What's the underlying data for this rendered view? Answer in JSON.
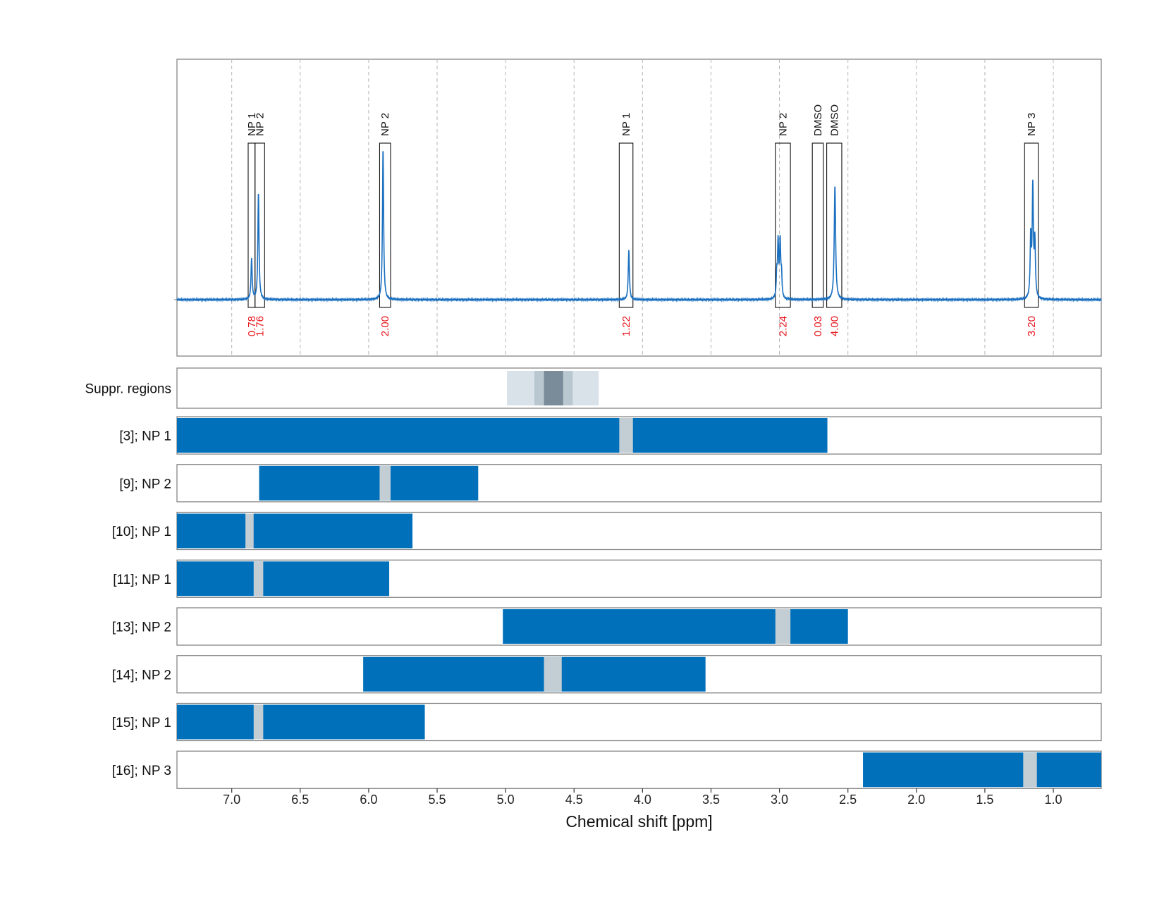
{
  "colors": {
    "spectrum": "#1a6fc0",
    "bar": "#0070bb",
    "gap": "#c2cdd4",
    "suppr_light": "#d9e2e9",
    "suppr_mid": "#b9c7d0",
    "suppr_dark": "#7a8c99",
    "integral": "#e8141c",
    "grid": "#b5b5b5",
    "frame": "#7b7b7b"
  },
  "chart_data": {
    "type": "line",
    "xlabel": "Chemical shift [ppm]",
    "xlim": [
      7.4,
      0.65
    ],
    "x_reversed": true,
    "x_ticks": [
      7.0,
      6.5,
      6.0,
      5.5,
      5.0,
      4.5,
      4.0,
      3.5,
      3.0,
      2.5,
      2.0,
      1.5,
      1.0
    ],
    "x_tick_labels": [
      "7.0",
      "6.5",
      "6.0",
      "5.5",
      "5.0",
      "4.5",
      "4.0",
      "3.5",
      "3.0",
      "2.5",
      "2.0",
      "1.5",
      "1.0"
    ],
    "grid": "vertical dashed",
    "spectrum_peaks": [
      {
        "ppm": 6.855,
        "height": 0.27,
        "width": 0.005
      },
      {
        "ppm": 6.805,
        "height": 0.71,
        "width": 0.005
      },
      {
        "ppm": 5.895,
        "height": 1.0,
        "width": 0.005
      },
      {
        "ppm": 4.1,
        "height": 0.33,
        "width": 0.005
      },
      {
        "ppm": 3.01,
        "height": 0.37,
        "width": 0.005
      },
      {
        "ppm": 2.995,
        "height": 0.37,
        "width": 0.005
      },
      {
        "ppm": 3.02,
        "height": 0.14,
        "width": 0.004
      },
      {
        "ppm": 2.985,
        "height": 0.14,
        "width": 0.004
      },
      {
        "ppm": 2.595,
        "height": 0.76,
        "width": 0.006
      },
      {
        "ppm": 1.165,
        "height": 0.4,
        "width": 0.005
      },
      {
        "ppm": 1.15,
        "height": 0.72,
        "width": 0.005
      },
      {
        "ppm": 1.135,
        "height": 0.37,
        "width": 0.005
      }
    ],
    "peak_regions": [
      {
        "label": "NP 1",
        "from": 6.88,
        "to": 6.83,
        "integral": "0.78"
      },
      {
        "label": "NP 2",
        "from": 6.83,
        "to": 6.76,
        "integral": "1.76"
      },
      {
        "label": "NP 2",
        "from": 5.92,
        "to": 5.84,
        "integral": "2.00"
      },
      {
        "label": "NP 1",
        "from": 4.17,
        "to": 4.07,
        "integral": "1.22"
      },
      {
        "label": "NP 2",
        "from": 3.03,
        "to": 2.92,
        "integral": "2.24"
      },
      {
        "label": "DMSO",
        "from": 2.76,
        "to": 2.68,
        "integral": "0.03"
      },
      {
        "label": "DMSO",
        "from": 2.655,
        "to": 2.545,
        "integral": "4.00"
      },
      {
        "label": "NP 3",
        "from": 1.21,
        "to": 1.11,
        "integral": "3.20"
      }
    ],
    "suppression_regions": {
      "label": "Suppr. regions",
      "bands": [
        {
          "from": 4.99,
          "to": 4.32,
          "shade": "light"
        },
        {
          "from": 4.79,
          "to": 4.51,
          "shade": "mid"
        },
        {
          "from": 4.72,
          "to": 4.58,
          "shade": "dark"
        }
      ]
    },
    "tracks": [
      {
        "label": "[3]; NP 1",
        "bar_from": 7.4,
        "bar_to": 2.65,
        "gap_from": 4.17,
        "gap_to": 4.07
      },
      {
        "label": "[9]; NP 2",
        "bar_from": 6.8,
        "bar_to": 5.2,
        "gap_from": 5.92,
        "gap_to": 5.84
      },
      {
        "label": "[10]; NP 1",
        "bar_from": 7.4,
        "bar_to": 5.68,
        "gap_from": 6.9,
        "gap_to": 6.84
      },
      {
        "label": "[11]; NP 1",
        "bar_from": 7.4,
        "bar_to": 5.85,
        "gap_from": 6.84,
        "gap_to": 6.77
      },
      {
        "label": "[13]; NP 2",
        "bar_from": 5.02,
        "bar_to": 2.5,
        "gap_from": 3.03,
        "gap_to": 2.92
      },
      {
        "label": "[14]; NP 2",
        "bar_from": 6.04,
        "bar_to": 3.54,
        "gap_from": 4.72,
        "gap_to": 4.59
      },
      {
        "label": "[15]; NP 1",
        "bar_from": 7.4,
        "bar_to": 5.59,
        "gap_from": 6.84,
        "gap_to": 6.77
      },
      {
        "label": "[16]; NP 3",
        "bar_from": 2.39,
        "bar_to": 0.65,
        "gap_from": 1.22,
        "gap_to": 1.12
      }
    ]
  }
}
